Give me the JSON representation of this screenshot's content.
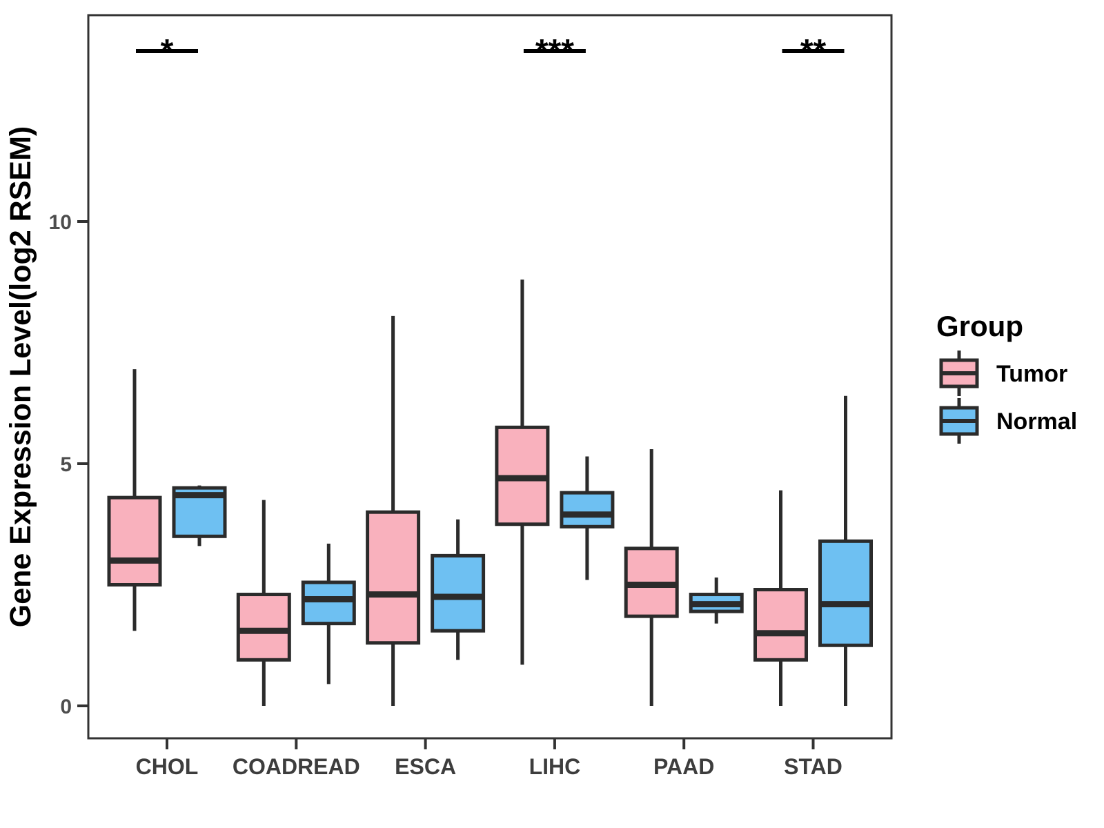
{
  "chart_data": {
    "type": "boxplot",
    "title": "",
    "ylabel": "Gene Expression Level(log2 RSEM)",
    "xlabel": "",
    "categories": [
      "CHOL",
      "COADREAD",
      "ESCA",
      "LIHC",
      "PAAD",
      "STAD"
    ],
    "groups": [
      "Tumor",
      "Normal"
    ],
    "legend_title": "Group",
    "legend_position": "right",
    "yticks": [
      0,
      5,
      10
    ],
    "ylim": [
      -0.7,
      14.3
    ],
    "grid": false,
    "colors": {
      "tumor_fill": "#F9B1BD",
      "normal_fill": "#6EC0F2",
      "box_stroke": "#2B2B2B",
      "axis_text": "#4D4D4D",
      "x_label_text": "#3D3D3D",
      "title_text": "#000000",
      "panel_border": "#333333"
    },
    "series": [
      {
        "name": "Tumor",
        "color": "#F9B1BD",
        "boxes": [
          {
            "category": "CHOL",
            "min": 1.55,
            "q1": 2.5,
            "median": 3.0,
            "q3": 4.3,
            "max": 6.95
          },
          {
            "category": "COADREAD",
            "min": 0.0,
            "q1": 0.95,
            "median": 1.55,
            "q3": 2.3,
            "max": 4.25
          },
          {
            "category": "ESCA",
            "min": 0.0,
            "q1": 1.3,
            "median": 2.3,
            "q3": 4.0,
            "max": 8.05
          },
          {
            "category": "LIHC",
            "min": 0.85,
            "q1": 3.75,
            "median": 4.7,
            "q3": 5.75,
            "max": 8.8
          },
          {
            "category": "PAAD",
            "min": 0.0,
            "q1": 1.85,
            "median": 2.5,
            "q3": 3.25,
            "max": 5.3
          },
          {
            "category": "STAD",
            "min": 0.0,
            "q1": 0.95,
            "median": 1.5,
            "q3": 2.4,
            "max": 4.45
          }
        ]
      },
      {
        "name": "Normal",
        "color": "#6EC0F2",
        "boxes": [
          {
            "category": "CHOL",
            "min": 3.3,
            "q1": 3.5,
            "median": 4.35,
            "q3": 4.5,
            "max": 4.55
          },
          {
            "category": "COADREAD",
            "min": 0.45,
            "q1": 1.7,
            "median": 2.2,
            "q3": 2.55,
            "max": 3.35
          },
          {
            "category": "ESCA",
            "min": 0.95,
            "q1": 1.55,
            "median": 2.25,
            "q3": 3.1,
            "max": 3.85
          },
          {
            "category": "LIHC",
            "min": 2.6,
            "q1": 3.7,
            "median": 3.95,
            "q3": 4.4,
            "max": 5.15
          },
          {
            "category": "PAAD",
            "min": 1.7,
            "q1": 1.95,
            "median": 2.1,
            "q3": 2.3,
            "max": 2.65
          },
          {
            "category": "STAD",
            "min": 0.0,
            "q1": 1.25,
            "median": 2.1,
            "q3": 3.4,
            "max": 6.4
          }
        ]
      }
    ],
    "significance": [
      {
        "category": "CHOL",
        "label": "*"
      },
      {
        "category": "LIHC",
        "label": "***"
      },
      {
        "category": "STAD",
        "label": "**"
      }
    ]
  }
}
